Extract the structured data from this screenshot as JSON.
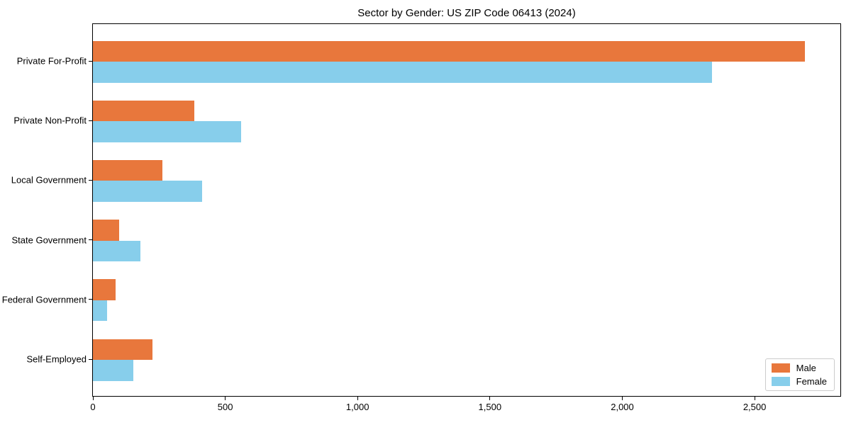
{
  "chart_data": {
    "type": "bar",
    "orientation": "horizontal",
    "title": "Sector by Gender: US ZIP Code 06413 (2024)",
    "xlabel": "",
    "ylabel": "",
    "categories": [
      "Private For-Profit",
      "Private Non-Profit",
      "Local Government",
      "State Government",
      "Federal Government",
      "Self-Employed"
    ],
    "series": [
      {
        "name": "Male",
        "color": "#e8773c",
        "values": [
          2690,
          382,
          262,
          99,
          86,
          225
        ]
      },
      {
        "name": "Female",
        "color": "#87ceeb",
        "values": [
          2340,
          559,
          412,
          179,
          53,
          152
        ]
      }
    ],
    "xlim": [
      0,
      2824
    ],
    "xticks": [
      0,
      500,
      1000,
      1500,
      2000,
      2500
    ],
    "xtick_labels": [
      "0",
      "500",
      "1,000",
      "1,500",
      "2,000",
      "2,500"
    ],
    "grid": false,
    "legend_position": "lower right",
    "frame_color": "#000000",
    "background_color": "#ffffff"
  }
}
